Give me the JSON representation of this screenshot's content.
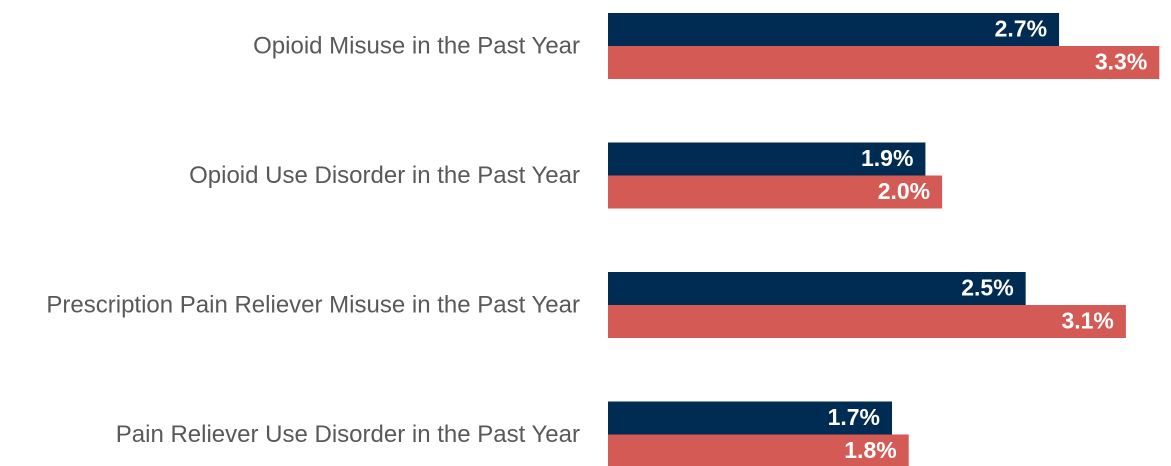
{
  "chart_data": {
    "type": "hbar",
    "categories": [
      "Opioid Misuse in the Past Year",
      "Opioid Use Disorder in the Past Year",
      "Prescription Pain Reliever Misuse in the Past Year",
      "Pain Reliever Use Disorder in the Past Year"
    ],
    "series": [
      {
        "color": "#002b53",
        "values": [
          2.7,
          1.9,
          2.5,
          1.7
        ],
        "value_labels": [
          "2.7%",
          "1.9%",
          "2.5%",
          "1.7%"
        ]
      },
      {
        "color": "#d45a55",
        "values": [
          3.3,
          2.0,
          3.1,
          1.8
        ],
        "value_labels": [
          "3.3%",
          "2.0%",
          "3.1%",
          "1.8%"
        ]
      }
    ],
    "xlim": [
      0,
      3.34
    ]
  }
}
